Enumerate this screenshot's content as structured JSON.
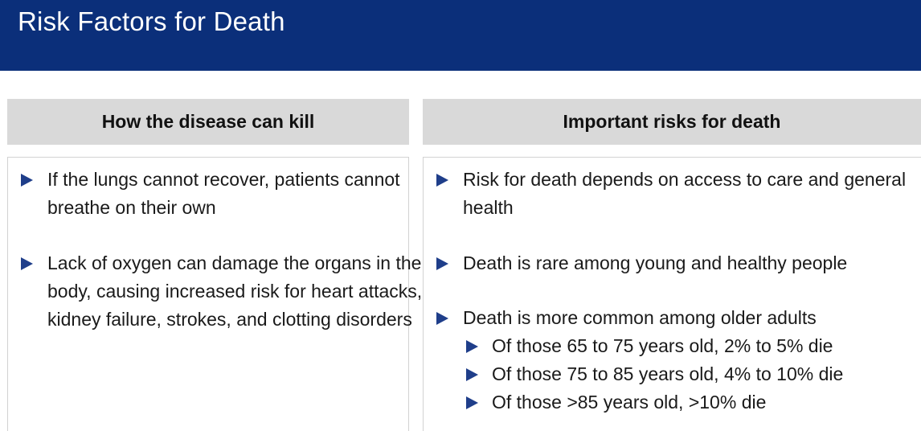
{
  "slide": {
    "title": "Risk Factors for Death"
  },
  "left_column": {
    "header": "How the disease can kill",
    "bullets": [
      "If the lungs cannot recover, patients cannot breathe on their own",
      "Lack of oxygen can damage the organs in the body, causing increased risk for heart attacks, kidney failure, strokes, and clotting disorders"
    ]
  },
  "right_column": {
    "header": "Important risks for death",
    "bullets": [
      "Risk for death depends on access to care and general health",
      "Death is rare among young and healthy people",
      "Death is more common among older adults"
    ],
    "sub_bullets": [
      "Of those 65 to 75 years old, 2% to 5% die",
      "Of those 75 to 85 years old, 4% to 10% die",
      "Of those >85 years old, >10% die"
    ]
  },
  "colors": {
    "title_bar": "#0b2f7a",
    "header_bg": "#d9d9d9",
    "bullet_arrow": "#1f3e8a"
  },
  "icons": {
    "bullet": "triangle-right-icon"
  }
}
